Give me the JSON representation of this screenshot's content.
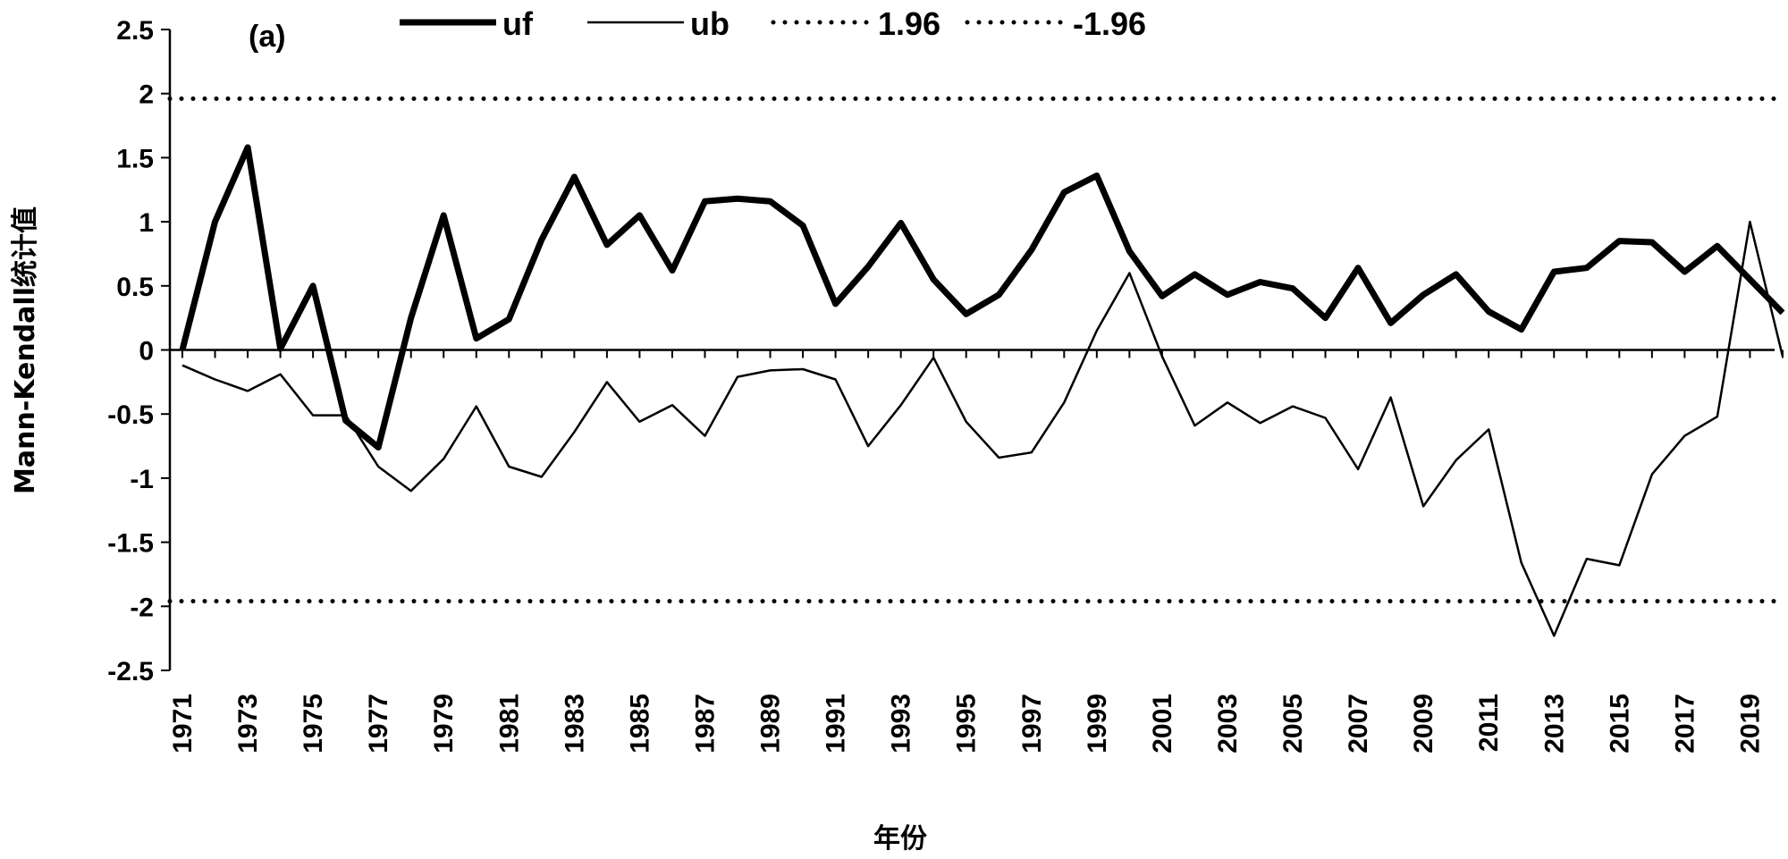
{
  "chart_data": {
    "type": "line",
    "panel_label": "(a)",
    "xlabel": "年份",
    "ylabel": "Mann-Kendall统计值",
    "ylim": [
      -2.5,
      2.5
    ],
    "yticks": [
      2.5,
      2,
      1.5,
      1,
      0.5,
      0,
      -0.5,
      -1,
      -1.5,
      -2,
      -2.5
    ],
    "ytick_labels": [
      "2.5",
      "2",
      "1.5",
      "1",
      "0.5",
      "0",
      "-0.5",
      "-1",
      "-1.5",
      "-2",
      "-2.5"
    ],
    "x": [
      1971,
      1972,
      1973,
      1974,
      1975,
      1976,
      1977,
      1978,
      1979,
      1980,
      1981,
      1982,
      1983,
      1984,
      1985,
      1986,
      1987,
      1988,
      1989,
      1990,
      1991,
      1992,
      1993,
      1994,
      1995,
      1996,
      1997,
      1998,
      1999,
      2000,
      2001,
      2002,
      2003,
      2004,
      2005,
      2006,
      2007,
      2008,
      2009,
      2010,
      2011,
      2012,
      2013,
      2014,
      2015,
      2016,
      2017,
      2018,
      2019,
      2020
    ],
    "xtick_labels": [
      "1971",
      "1973",
      "1975",
      "1977",
      "1979",
      "1981",
      "1983",
      "1985",
      "1987",
      "1989",
      "1991",
      "1993",
      "1995",
      "1997",
      "1999",
      "2001",
      "2003",
      "2005",
      "2007",
      "2009",
      "2011",
      "2013",
      "2015",
      "2017",
      "2019"
    ],
    "series": [
      {
        "name": "uf",
        "style": "thick",
        "values": [
          0,
          1.0,
          1.58,
          0.01,
          0.5,
          -0.55,
          -0.76,
          0.25,
          1.05,
          0.09,
          0.24,
          0.86,
          1.35,
          0.82,
          1.05,
          0.62,
          1.16,
          1.18,
          1.16,
          0.97,
          0.36,
          0.65,
          0.99,
          0.55,
          0.28,
          0.43,
          0.78,
          1.23,
          1.36,
          0.77,
          0.42,
          0.59,
          0.43,
          0.53,
          0.48,
          0.25,
          0.64,
          0.21,
          0.43,
          0.59,
          0.3,
          0.16,
          0.61,
          0.64,
          0.85,
          0.84,
          0.61,
          0.81,
          0.55,
          0.29
        ]
      },
      {
        "name": "ub",
        "style": "thin",
        "values": [
          -0.12,
          -0.23,
          -0.32,
          -0.19,
          -0.51,
          -0.51,
          -0.91,
          -1.1,
          -0.85,
          -0.44,
          -0.91,
          -0.99,
          -0.64,
          -0.25,
          -0.56,
          -0.43,
          -0.67,
          -0.21,
          -0.16,
          -0.15,
          -0.23,
          -0.75,
          -0.43,
          -0.06,
          -0.56,
          -0.84,
          -0.8,
          -0.41,
          0.15,
          0.6,
          -0.05,
          -0.59,
          -0.41,
          -0.57,
          -0.44,
          -0.53,
          -0.93,
          -0.37,
          -1.22,
          -0.86,
          -0.62,
          -1.66,
          -2.23,
          -1.63,
          -1.68,
          -0.97,
          -0.67,
          -0.52,
          1.0,
          -0.05
        ]
      },
      {
        "name": "1.96",
        "style": "dotted",
        "constant": 1.96
      },
      {
        "name": "-1.96",
        "style": "dotted",
        "constant": -1.96
      }
    ],
    "legend_position": "top",
    "grid": false
  }
}
